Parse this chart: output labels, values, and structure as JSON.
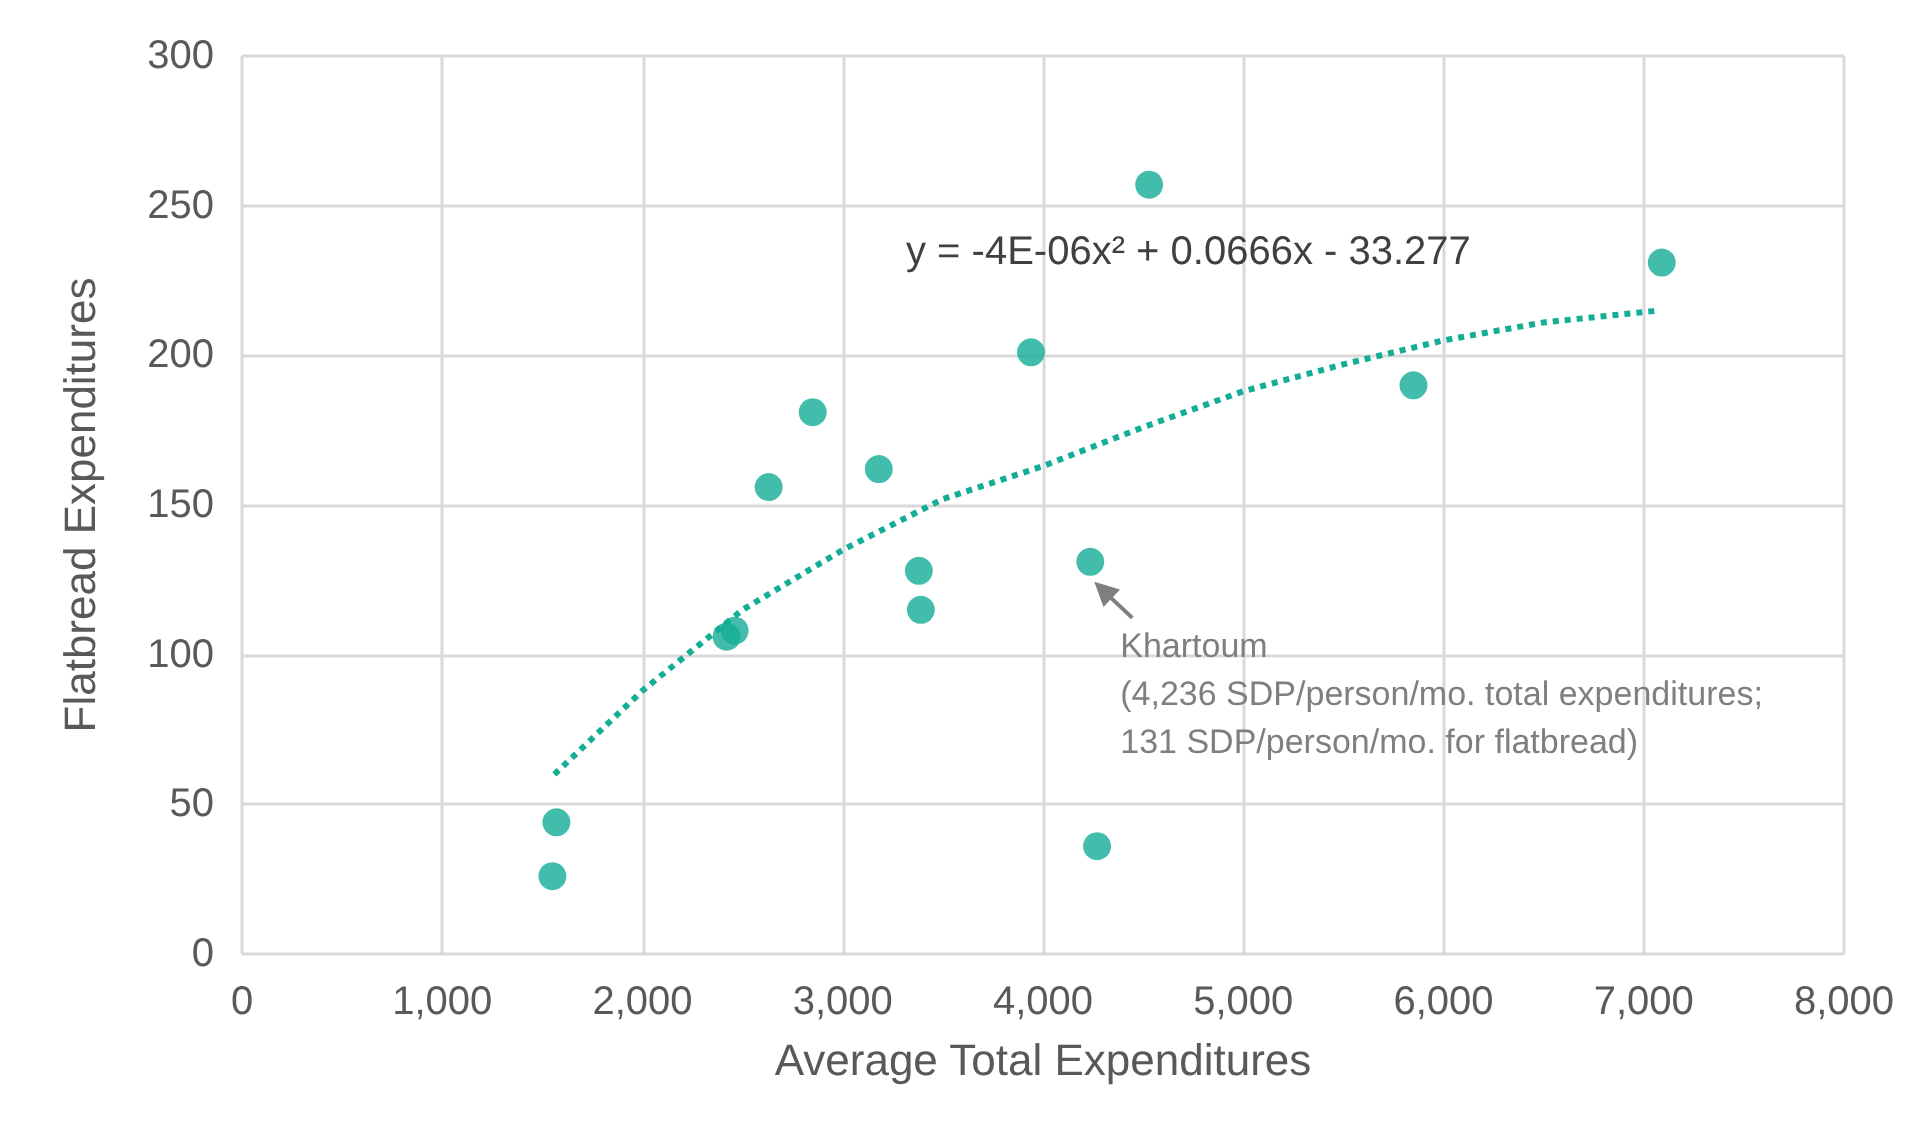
{
  "chart_data": {
    "type": "scatter",
    "xlabel": "Average Total Expenditures",
    "ylabel": "Flatbread Expenditures",
    "xlim": [
      0,
      8000
    ],
    "xticks": [
      {
        "value": 0,
        "label": "0"
      },
      {
        "value": 1000,
        "label": "1,000"
      },
      {
        "value": 2000,
        "label": "2,000"
      },
      {
        "value": 3000,
        "label": "3,000"
      },
      {
        "value": 4000,
        "label": "4,000"
      },
      {
        "value": 5000,
        "label": "5,000"
      },
      {
        "value": 6000,
        "label": "6,000"
      },
      {
        "value": 7000,
        "label": "7,000"
      },
      {
        "value": 8000,
        "label": "8,000"
      }
    ],
    "ylim": [
      0,
      300
    ],
    "yticks": [
      0,
      50,
      100,
      150,
      200,
      250,
      300
    ],
    "grid": true,
    "marker": "circle",
    "series": [
      {
        "type": "scatter",
        "color": "#14ad96",
        "x": [
          1550,
          1570,
          2420,
          2460,
          2630,
          2850,
          3180,
          3380,
          3390,
          3940,
          4236,
          4270,
          4530,
          5850,
          7090
        ],
        "values": [
          26,
          44,
          106,
          108,
          156,
          181,
          162,
          128,
          115,
          201,
          131,
          36,
          257,
          190,
          231
        ]
      },
      {
        "type": "line",
        "color": "#14ad96",
        "line_style": "dotted",
        "marker": "none",
        "x": [
          1560,
          2000,
          2500,
          3000,
          3500,
          4000,
          4500,
          5000,
          5500,
          6000,
          6500,
          7080
        ],
        "values": [
          60,
          88,
          115,
          135,
          152,
          163,
          176,
          188,
          197,
          205,
          211,
          215
        ]
      }
    ],
    "annotations": [
      "y = -4E-06x² + 0.0666x - 33.277",
      {
        "text": "Khartoum\n(4,236 SDP/person/mo. total expenditures;\n131 SDP/person/mo. for flatbread)",
        "x": 4236,
        "y": 131
      }
    ]
  }
}
